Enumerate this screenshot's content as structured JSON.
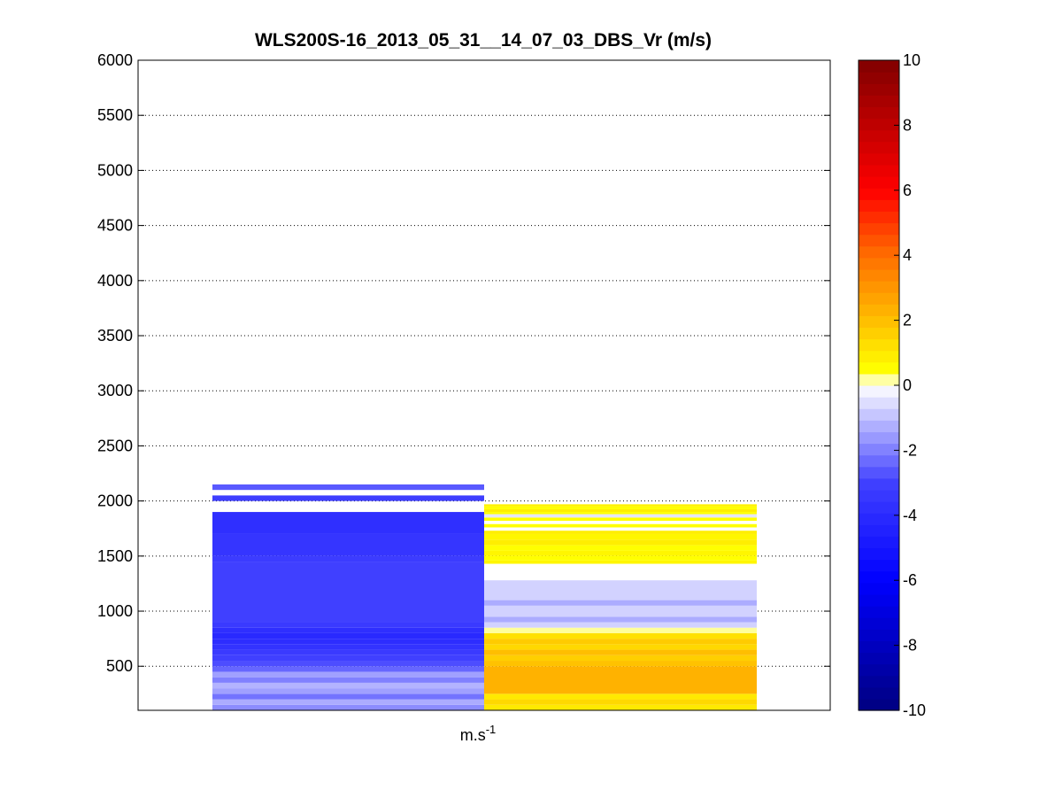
{
  "chart_data": {
    "type": "heatmap",
    "title": "WLS200S-16_2013_05_31__14_07_03_DBS_Vr (m/s)",
    "xlabel": "m.s",
    "xlabel_superscript": "-1",
    "ylabel": "",
    "ylim": [
      100,
      6000
    ],
    "yticks": [
      500,
      1000,
      1500,
      2000,
      2500,
      3000,
      3500,
      4000,
      4500,
      5000,
      5500,
      6000
    ],
    "grid": "horizontal dotted",
    "colorbar": {
      "range": [
        -10,
        10
      ],
      "ticks": [
        -10,
        -8,
        -6,
        -4,
        -2,
        0,
        2,
        4,
        6,
        8,
        10
      ],
      "colormap": "blue-white-red",
      "levels": 56
    },
    "columns": [
      {
        "segments": [
          {
            "bottom": 100,
            "top": 150,
            "value": -1.8
          },
          {
            "bottom": 150,
            "top": 200,
            "value": -1.3
          },
          {
            "bottom": 200,
            "top": 250,
            "value": -2.2
          },
          {
            "bottom": 250,
            "top": 300,
            "value": -1.5
          },
          {
            "bottom": 300,
            "top": 350,
            "value": -1.2
          },
          {
            "bottom": 350,
            "top": 400,
            "value": -2.0
          },
          {
            "bottom": 400,
            "top": 450,
            "value": -1.5
          },
          {
            "bottom": 450,
            "top": 500,
            "value": -2.4
          },
          {
            "bottom": 500,
            "top": 550,
            "value": -2.8
          },
          {
            "bottom": 550,
            "top": 600,
            "value": -3.0
          },
          {
            "bottom": 600,
            "top": 650,
            "value": -3.3
          },
          {
            "bottom": 650,
            "top": 700,
            "value": -3.6
          },
          {
            "bottom": 700,
            "top": 750,
            "value": -3.9
          },
          {
            "bottom": 750,
            "top": 800,
            "value": -4.1
          },
          {
            "bottom": 800,
            "top": 850,
            "value": -3.8
          },
          {
            "bottom": 850,
            "top": 900,
            "value": -3.3
          },
          {
            "bottom": 900,
            "top": 1450,
            "value": -3.0
          },
          {
            "bottom": 1450,
            "top": 1500,
            "value": -3.2
          },
          {
            "bottom": 1500,
            "top": 1700,
            "value": -3.5
          },
          {
            "bottom": 1700,
            "top": 1900,
            "value": -3.8
          },
          {
            "bottom": 2000,
            "top": 2050,
            "value": -3.1
          },
          {
            "bottom": 2100,
            "top": 2150,
            "value": -2.6
          }
        ]
      },
      {
        "segments": [
          {
            "bottom": 100,
            "top": 150,
            "value": 1.0
          },
          {
            "bottom": 150,
            "top": 200,
            "value": 1.4
          },
          {
            "bottom": 200,
            "top": 250,
            "value": 1.0
          },
          {
            "bottom": 250,
            "top": 500,
            "value": 2.3
          },
          {
            "bottom": 500,
            "top": 550,
            "value": 1.9
          },
          {
            "bottom": 550,
            "top": 600,
            "value": 1.6
          },
          {
            "bottom": 600,
            "top": 650,
            "value": 2.0
          },
          {
            "bottom": 650,
            "top": 700,
            "value": 1.4
          },
          {
            "bottom": 700,
            "top": 750,
            "value": 1.7
          },
          {
            "bottom": 750,
            "top": 800,
            "value": 1.2
          },
          {
            "bottom": 800,
            "top": 850,
            "value": 0.2
          },
          {
            "bottom": 850,
            "top": 900,
            "value": -0.7
          },
          {
            "bottom": 900,
            "top": 950,
            "value": -1.3
          },
          {
            "bottom": 950,
            "top": 1050,
            "value": -0.7
          },
          {
            "bottom": 1050,
            "top": 1100,
            "value": -1.3
          },
          {
            "bottom": 1100,
            "top": 1280,
            "value": -0.7
          },
          {
            "bottom": 1430,
            "top": 1460,
            "value": 0.7
          },
          {
            "bottom": 1460,
            "top": 1500,
            "value": 0.5
          },
          {
            "bottom": 1500,
            "top": 1550,
            "value": 0.7
          },
          {
            "bottom": 1550,
            "top": 1600,
            "value": 0.5
          },
          {
            "bottom": 1600,
            "top": 1650,
            "value": 0.9
          },
          {
            "bottom": 1650,
            "top": 1700,
            "value": 0.7
          },
          {
            "bottom": 1700,
            "top": 1730,
            "value": 0.9
          },
          {
            "bottom": 1760,
            "top": 1790,
            "value": 0.5
          },
          {
            "bottom": 1820,
            "top": 1850,
            "value": 0.5
          },
          {
            "bottom": 1850,
            "top": 1880,
            "value": -0.4
          },
          {
            "bottom": 1880,
            "top": 1900,
            "value": 0.5
          },
          {
            "bottom": 1900,
            "top": 1925,
            "value": 0.9
          },
          {
            "bottom": 1925,
            "top": 1950,
            "value": 0.5
          },
          {
            "bottom": 1950,
            "top": 1970,
            "value": 0.8
          }
        ]
      }
    ]
  }
}
